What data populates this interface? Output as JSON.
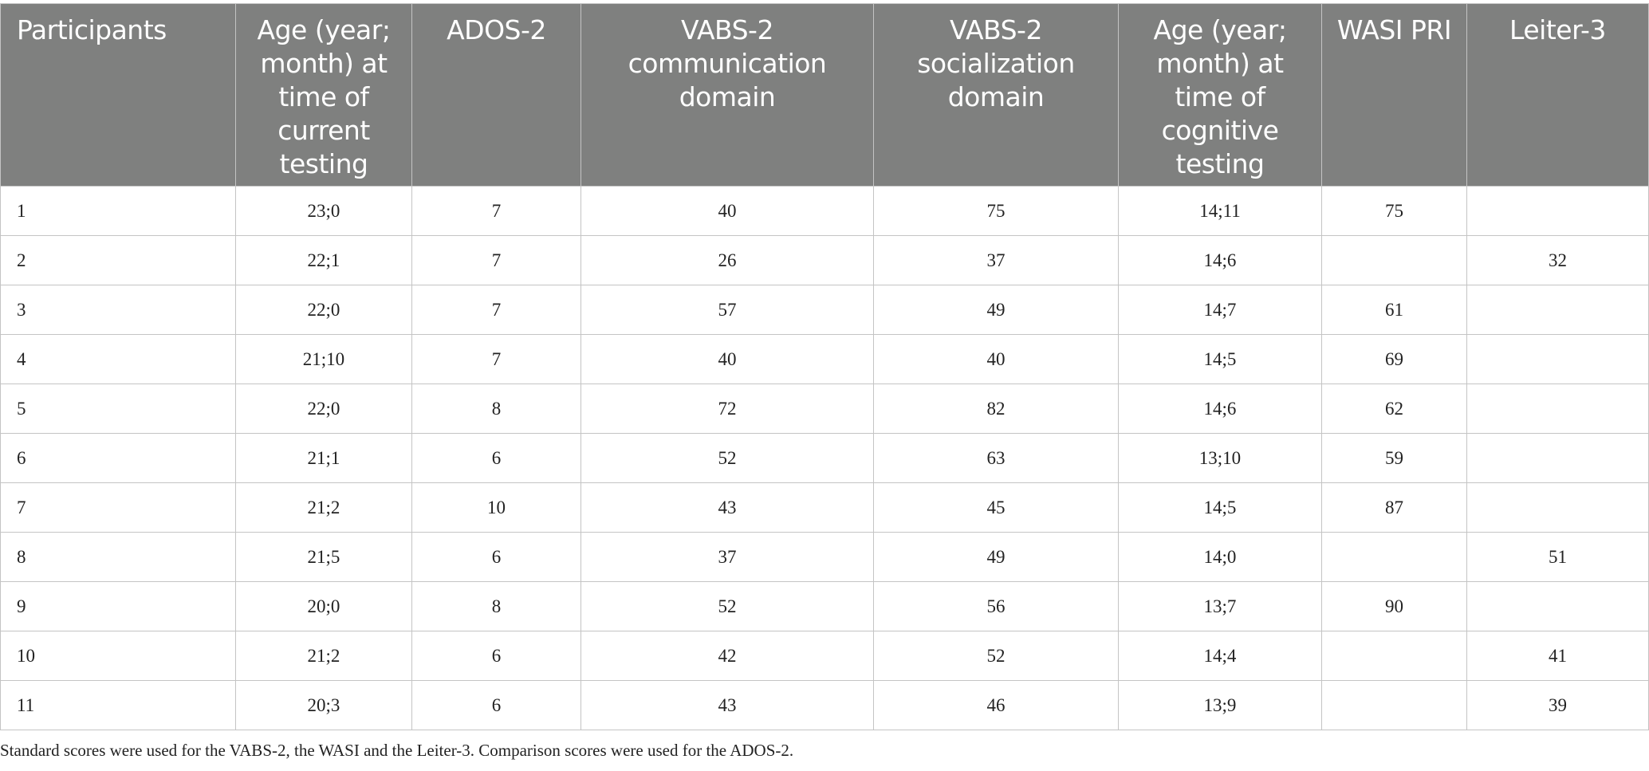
{
  "table": {
    "headers": [
      "Participants",
      "Age (year; month) at time of current testing",
      "ADOS-2",
      "VABS-2 communication domain",
      "VABS-2 socialization domain",
      "Age (year; month) at time of cognitive testing",
      "WASI PRI",
      "Leiter-3"
    ],
    "rows": [
      [
        "1",
        "23;0",
        "7",
        "40",
        "75",
        "14;11",
        "75",
        ""
      ],
      [
        "2",
        "22;1",
        "7",
        "26",
        "37",
        "14;6",
        "",
        "32"
      ],
      [
        "3",
        "22;0",
        "7",
        "57",
        "49",
        "14;7",
        "61",
        ""
      ],
      [
        "4",
        "21;10",
        "7",
        "40",
        "40",
        "14;5",
        "69",
        ""
      ],
      [
        "5",
        "22;0",
        "8",
        "72",
        "82",
        "14;6",
        "62",
        ""
      ],
      [
        "6",
        "21;1",
        "6",
        "52",
        "63",
        "13;10",
        "59",
        ""
      ],
      [
        "7",
        "21;2",
        "10",
        "43",
        "45",
        "14;5",
        "87",
        ""
      ],
      [
        "8",
        "21;5",
        "6",
        "37",
        "49",
        "14;0",
        "",
        "51"
      ],
      [
        "9",
        "20;0",
        "8",
        "52",
        "56",
        "13;7",
        "90",
        ""
      ],
      [
        "10",
        "21;2",
        "6",
        "42",
        "52",
        "14;4",
        "",
        "41"
      ],
      [
        "11",
        "20;3",
        "6",
        "43",
        "46",
        "13;9",
        "",
        "39"
      ]
    ]
  },
  "footnote": "Standard scores were used for the VABS-2, the WASI and the Leiter-3. Comparison scores were used for the ADOS-2.",
  "colors": {
    "header_bg": "#7f807f",
    "header_text": "#ffffff",
    "border": "#c4c4c4"
  }
}
